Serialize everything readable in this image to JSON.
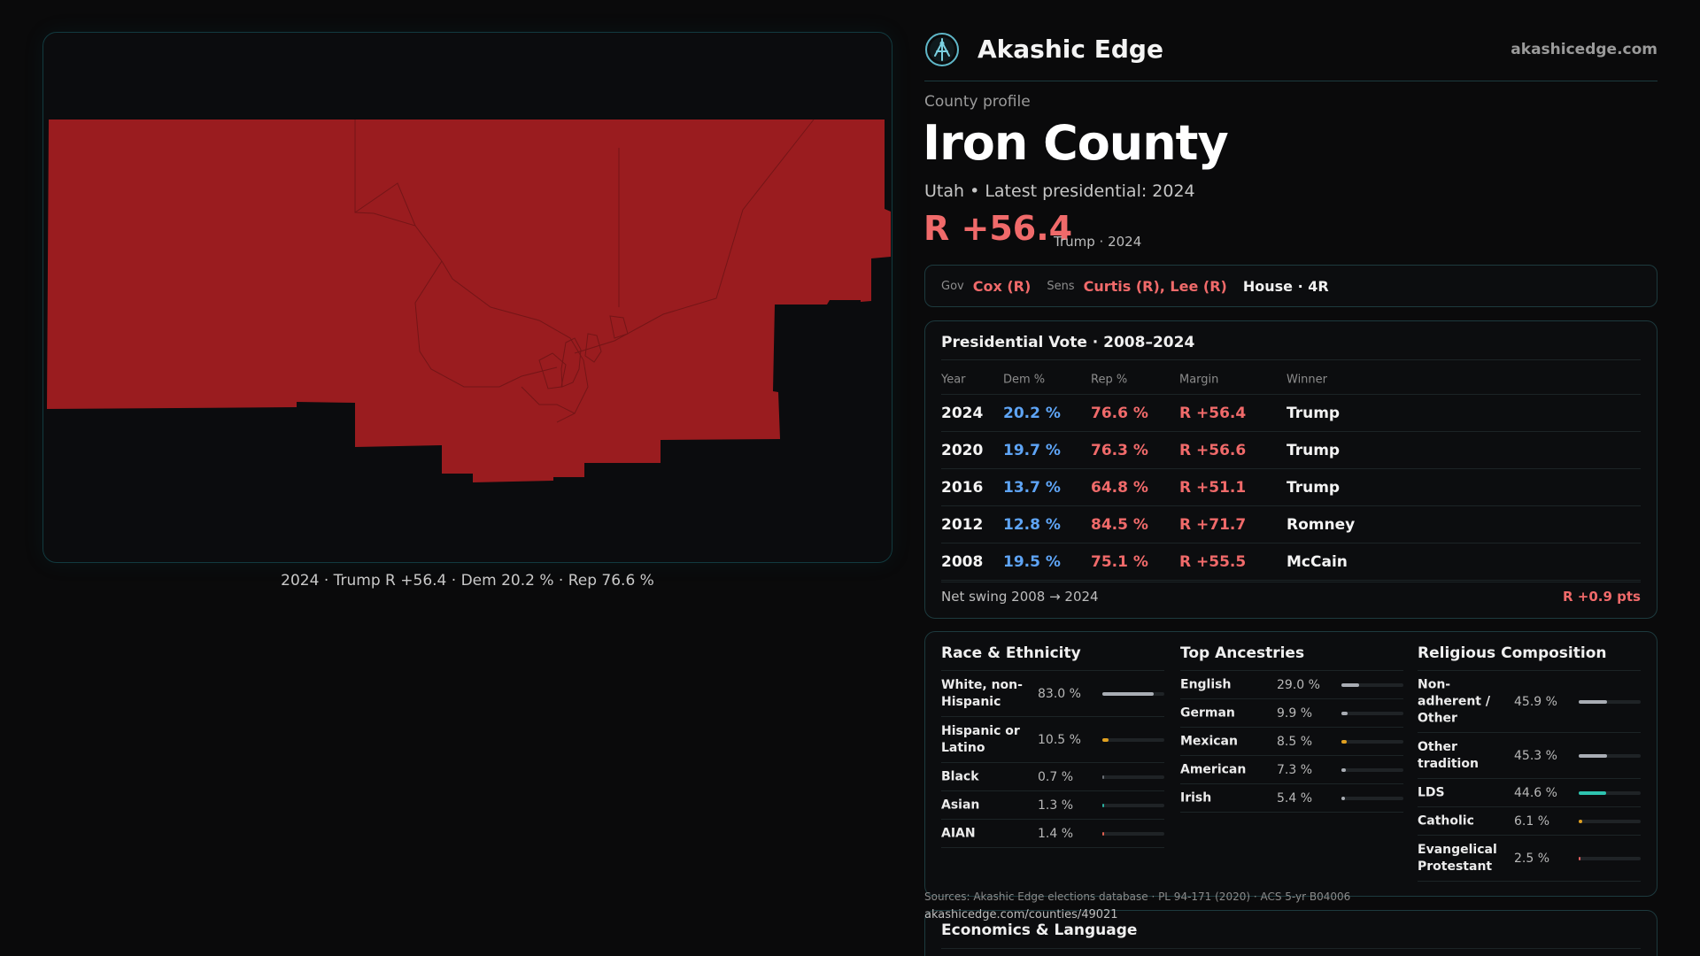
{
  "brand": {
    "name": "Akashic Edge",
    "site": "akashicedge.com",
    "logo_icon": "akashic-logo-icon"
  },
  "header": {
    "kicker": "County profile",
    "county": "Iron County",
    "subline": "Utah • Latest presidential: 2024",
    "margin": "R +56.4",
    "margin_note": "Trump · 2024"
  },
  "map": {
    "caption": "2024 · Trump R +56.4 · Dem 20.2 % · Rep 76.6 %",
    "fill_color": "#9a1c1f"
  },
  "officials": {
    "gov_label": "Gov",
    "gov_value": "Cox (R)",
    "sens_label": "Sens",
    "sens_value": "Curtis (R), Lee (R)",
    "house": "House · 4R"
  },
  "presidential": {
    "title": "Presidential Vote · 2008–2024",
    "columns": [
      "Year",
      "Dem %",
      "Rep %",
      "Margin",
      "Winner"
    ],
    "rows": [
      {
        "year": "2024",
        "dem": "20.2 %",
        "rep": "76.6 %",
        "margin": "R +56.4",
        "winner": "Trump"
      },
      {
        "year": "2020",
        "dem": "19.7 %",
        "rep": "76.3 %",
        "margin": "R +56.6",
        "winner": "Trump"
      },
      {
        "year": "2016",
        "dem": "13.7 %",
        "rep": "64.8 %",
        "margin": "R +51.1",
        "winner": "Trump"
      },
      {
        "year": "2012",
        "dem": "12.8 %",
        "rep": "84.5 %",
        "margin": "R +71.7",
        "winner": "Romney"
      },
      {
        "year": "2008",
        "dem": "19.5 %",
        "rep": "75.1 %",
        "margin": "R +55.5",
        "winner": "McCain"
      }
    ],
    "swing_label": "Net swing 2008 → 2024",
    "swing_value": "R +0.9 pts"
  },
  "demographics": {
    "race": {
      "title": "Race & Ethnicity",
      "items": [
        {
          "label": "White, non-Hispanic",
          "value": "83.0 %",
          "pct": 83.0,
          "color": "#a9adb4"
        },
        {
          "label": "Hispanic or Latino",
          "value": "10.5 %",
          "pct": 10.5,
          "color": "#e0a020"
        },
        {
          "label": "Black",
          "value": "0.7 %",
          "pct": 0.7,
          "color": "#6b6f75"
        },
        {
          "label": "Asian",
          "value": "1.3 %",
          "pct": 1.3,
          "color": "#2ab0a0"
        },
        {
          "label": "AIAN",
          "value": "1.4 %",
          "pct": 1.4,
          "color": "#e06050"
        }
      ]
    },
    "ancestry": {
      "title": "Top Ancestries",
      "items": [
        {
          "label": "English",
          "value": "29.0 %",
          "pct": 29.0,
          "color": "#a9adb4"
        },
        {
          "label": "German",
          "value": "9.9 %",
          "pct": 9.9,
          "color": "#a9adb4"
        },
        {
          "label": "Mexican",
          "value": "8.5 %",
          "pct": 8.5,
          "color": "#e0a020"
        },
        {
          "label": "American",
          "value": "7.3 %",
          "pct": 7.3,
          "color": "#a9adb4"
        },
        {
          "label": "Irish",
          "value": "5.4 %",
          "pct": 5.4,
          "color": "#a9adb4"
        }
      ]
    },
    "religion": {
      "title": "Religious Composition",
      "items": [
        {
          "label": "Non-adherent / Other",
          "value": "45.9 %",
          "pct": 45.9,
          "color": "#a9adb4"
        },
        {
          "label": "Other tradition",
          "value": "45.3 %",
          "pct": 45.3,
          "color": "#a9adb4"
        },
        {
          "label": "LDS",
          "value": "44.6 %",
          "pct": 44.6,
          "color": "#2ec4b0"
        },
        {
          "label": "Catholic",
          "value": "6.1 %",
          "pct": 6.1,
          "color": "#e0a020"
        },
        {
          "label": "Evangelical Protestant",
          "value": "2.5 %",
          "pct": 2.5,
          "color": "#e06060"
        }
      ]
    }
  },
  "sources": "Sources: Akashic Edge elections database · PL 94-171 (2020) · ACS 5-yr B04006",
  "source_url": "akashicedge.com/counties/49021",
  "economics": {
    "title": "Economics & Language"
  }
}
